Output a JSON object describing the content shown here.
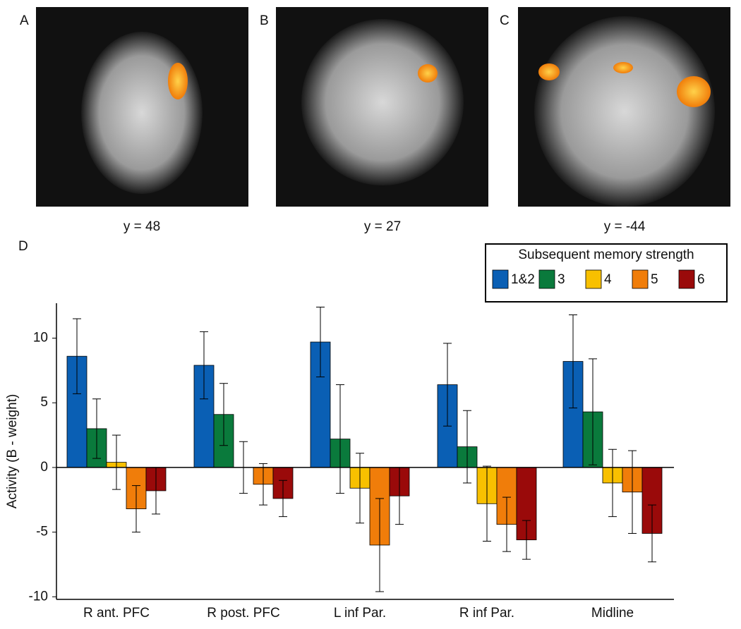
{
  "panels": [
    {
      "letter": "A",
      "caption": "y = 48"
    },
    {
      "letter": "B",
      "caption": "y = 27"
    },
    {
      "letter": "C",
      "caption": "y = -44"
    }
  ],
  "chart_data": {
    "type": "bar",
    "letter": "D",
    "y_label": "Activity (B - weight)",
    "legend_title": "Subsequent memory strength",
    "categories": [
      "R ant. PFC",
      "R post. PFC",
      "L inf Par.",
      "R inf Par.",
      "Midline"
    ],
    "series": [
      {
        "name": "1&2",
        "color": "#0a5fb4",
        "values": [
          8.6,
          7.9,
          9.7,
          6.4,
          8.2
        ],
        "errors": [
          2.9,
          2.6,
          2.7,
          3.2,
          3.6
        ]
      },
      {
        "name": "3",
        "color": "#0a7a3c",
        "values": [
          3.0,
          4.1,
          2.2,
          1.6,
          4.3
        ],
        "errors": [
          2.3,
          2.4,
          4.2,
          2.8,
          4.1
        ]
      },
      {
        "name": "4",
        "color": "#f8c000",
        "values": [
          0.4,
          0,
          -1.6,
          -2.8,
          -1.2
        ],
        "errors": [
          2.1,
          2.0,
          2.7,
          2.9,
          2.6
        ]
      },
      {
        "name": "5",
        "color": "#f07d0a",
        "values": [
          -3.2,
          -1.3,
          -6.0,
          -4.4,
          -1.9
        ],
        "errors": [
          1.8,
          1.6,
          3.6,
          2.1,
          3.2
        ]
      },
      {
        "name": "6",
        "color": "#9a0a0a",
        "values": [
          -1.8,
          -2.4,
          -2.2,
          -5.6,
          -5.1
        ],
        "errors": [
          1.8,
          1.4,
          2.2,
          1.5,
          2.2
        ]
      }
    ],
    "ylim": [
      -10.2,
      12.7
    ],
    "yticks": [
      -10,
      -5,
      0,
      5,
      10
    ]
  }
}
